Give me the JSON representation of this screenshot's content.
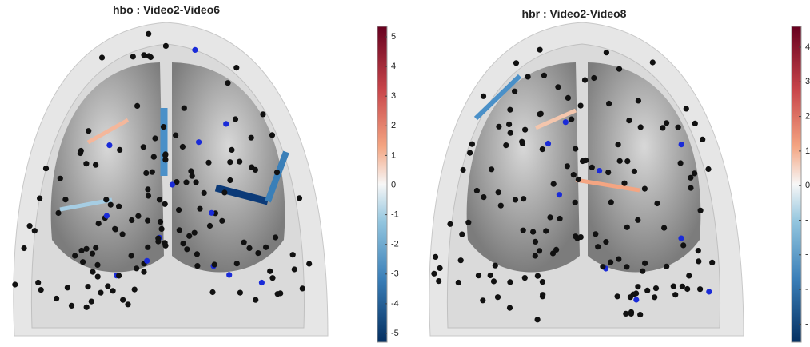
{
  "panels": [
    {
      "title": "hbo : Video2-Video6",
      "colorbar_labels": [
        "5",
        "4",
        "3",
        "2",
        "1",
        "0",
        "-1",
        "-2",
        "-3",
        "-4",
        "-5"
      ]
    },
    {
      "title": "hbr : Video2-Video8",
      "colorbar_labels": [
        "4",
        "3",
        "2",
        "1",
        "0",
        "-",
        "-",
        "-",
        "-"
      ]
    }
  ]
}
